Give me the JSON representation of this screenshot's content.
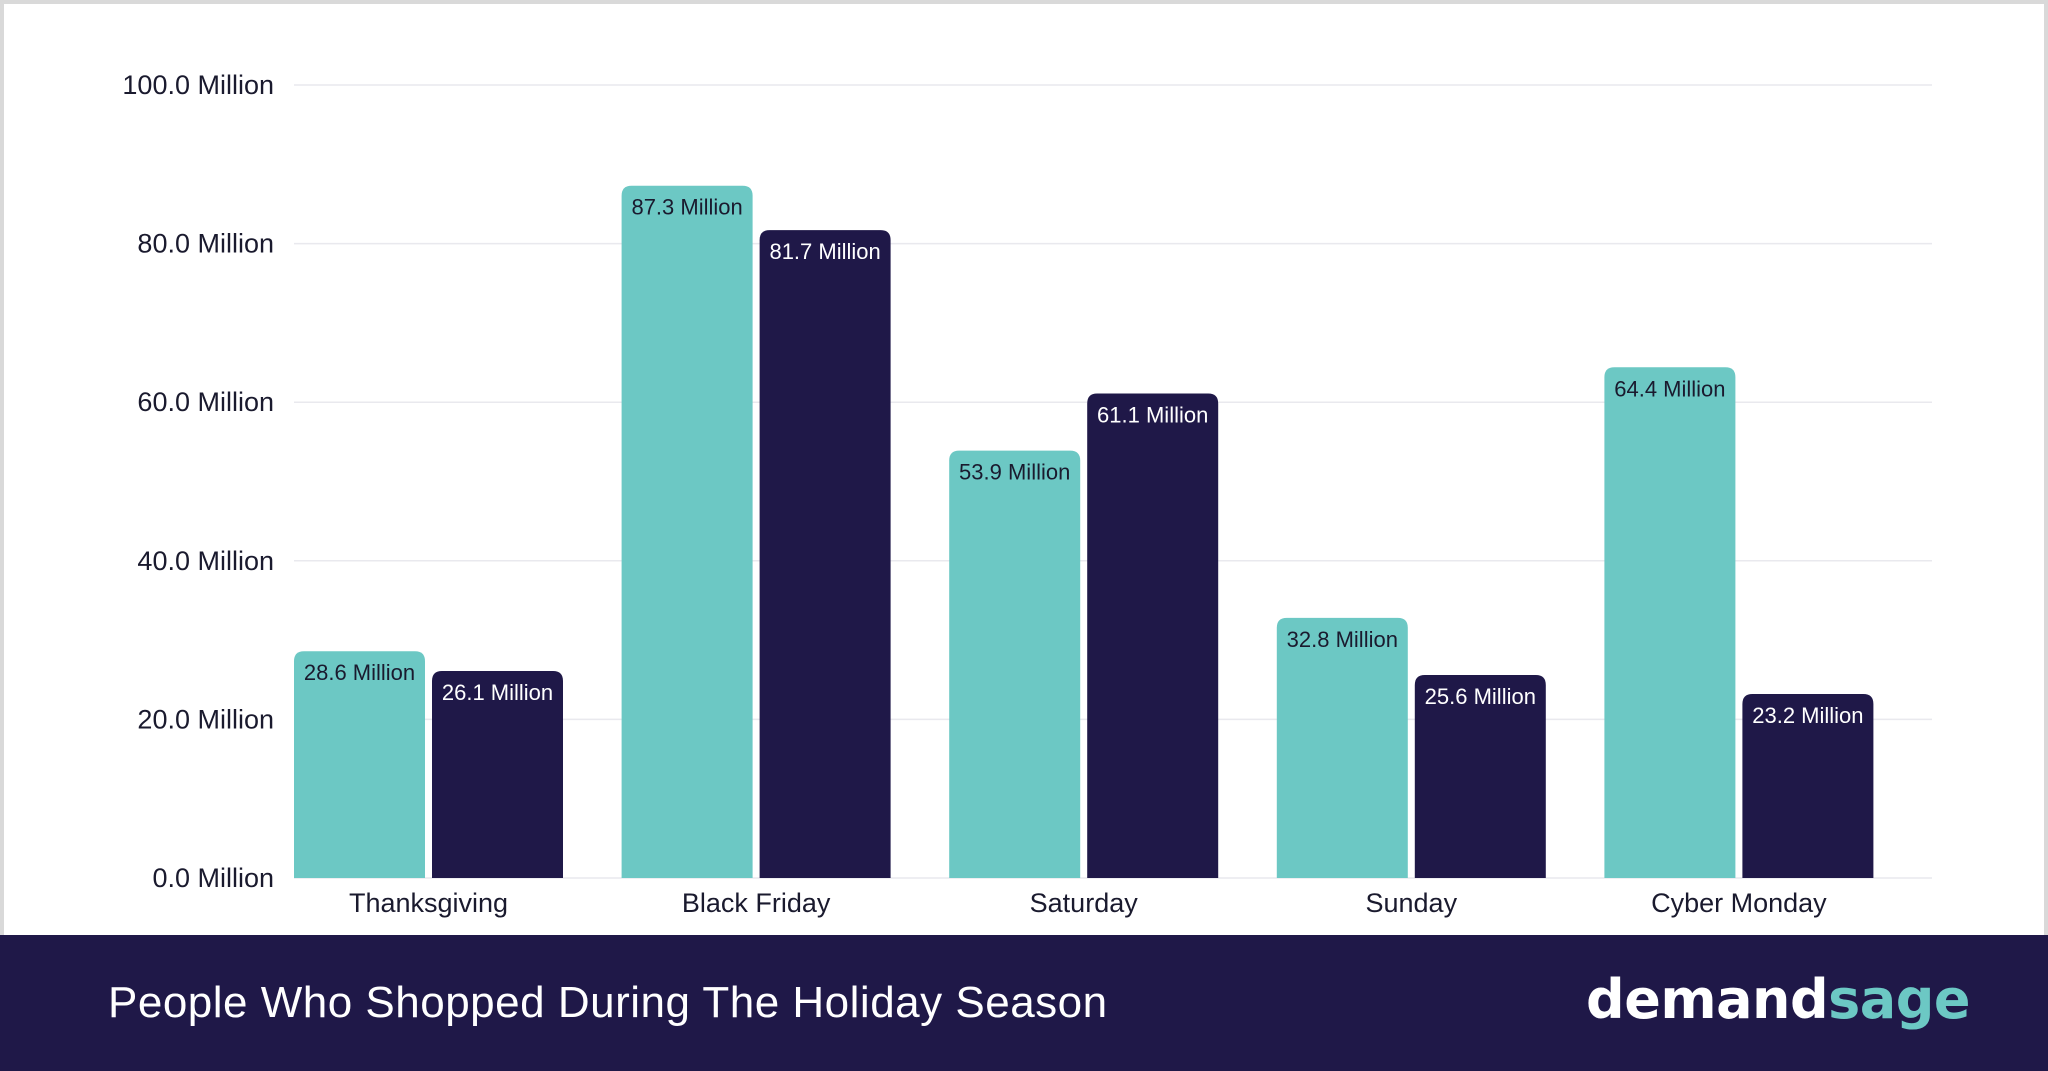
{
  "chart_data": {
    "type": "bar",
    "categories": [
      "Thanksgiving",
      "Black Friday",
      "Saturday",
      "Sunday",
      "Cyber Monday"
    ],
    "series": [
      {
        "values": [
          28.6,
          87.3,
          53.9,
          32.8,
          64.4
        ],
        "labels": [
          "28.6 Million",
          "87.3 Million",
          "53.9 Million",
          "32.8 Million",
          "64.4 Million"
        ],
        "color": "#6cc8c4",
        "label_color": "#1a1a2e"
      },
      {
        "values": [
          26.1,
          81.7,
          61.1,
          25.6,
          23.2
        ],
        "labels": [
          "26.1 Million",
          "81.7 Million",
          "61.1 Million",
          "25.6 Million",
          "23.2 Million"
        ],
        "color": "#1f1848",
        "label_color": "#ffffff"
      }
    ],
    "yticks": [
      0,
      20,
      40,
      60,
      80,
      100
    ],
    "ytick_labels": [
      "0.0 Million",
      "20.0 Million",
      "40.0 Million",
      "60.0 Million",
      "80.0 Million",
      "100.0 Million"
    ],
    "ylim": [
      0,
      100
    ],
    "grid": true,
    "title": "People Who Shopped During The Holiday Season"
  },
  "brand": {
    "logo_part1": "demand",
    "logo_part2": "sage",
    "footer_color": "#1f1848",
    "accent_color": "#6cc8c4"
  }
}
